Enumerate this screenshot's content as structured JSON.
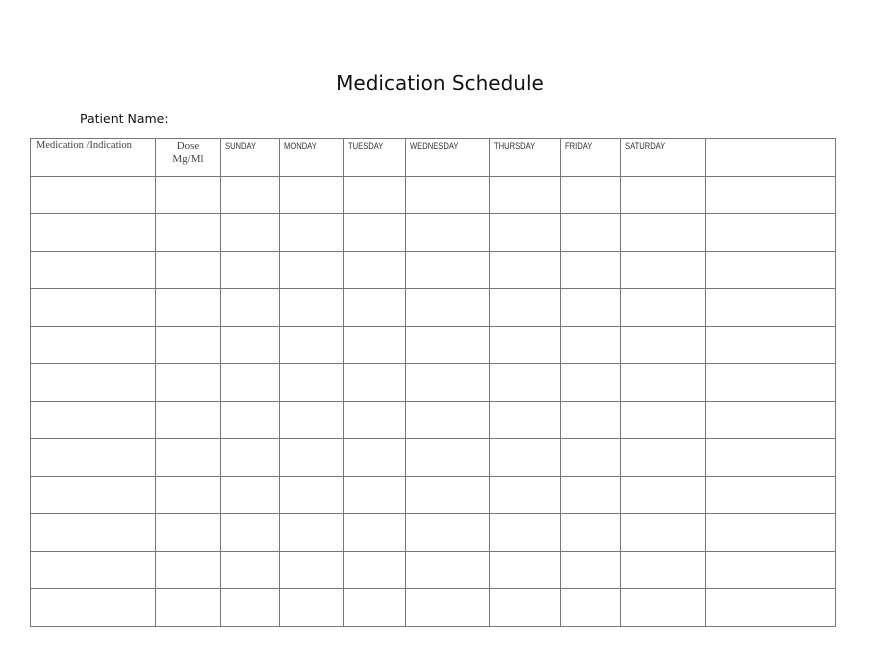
{
  "title": "Medication Schedule",
  "patient_name_label": "Patient Name:",
  "columns": {
    "medication": "Medication /Indication",
    "dose_line1": "Dose",
    "dose_line2": "Mg/Ml",
    "days": [
      "SUNDAY",
      "MONDAY",
      "TUESDAY",
      "WEDNESDAY",
      "THURSDAY",
      "FRIDAY",
      "SATURDAY"
    ],
    "extra": ""
  },
  "rows": [
    [],
    [],
    [],
    [],
    [],
    [],
    [],
    [],
    [],
    [],
    [],
    []
  ]
}
